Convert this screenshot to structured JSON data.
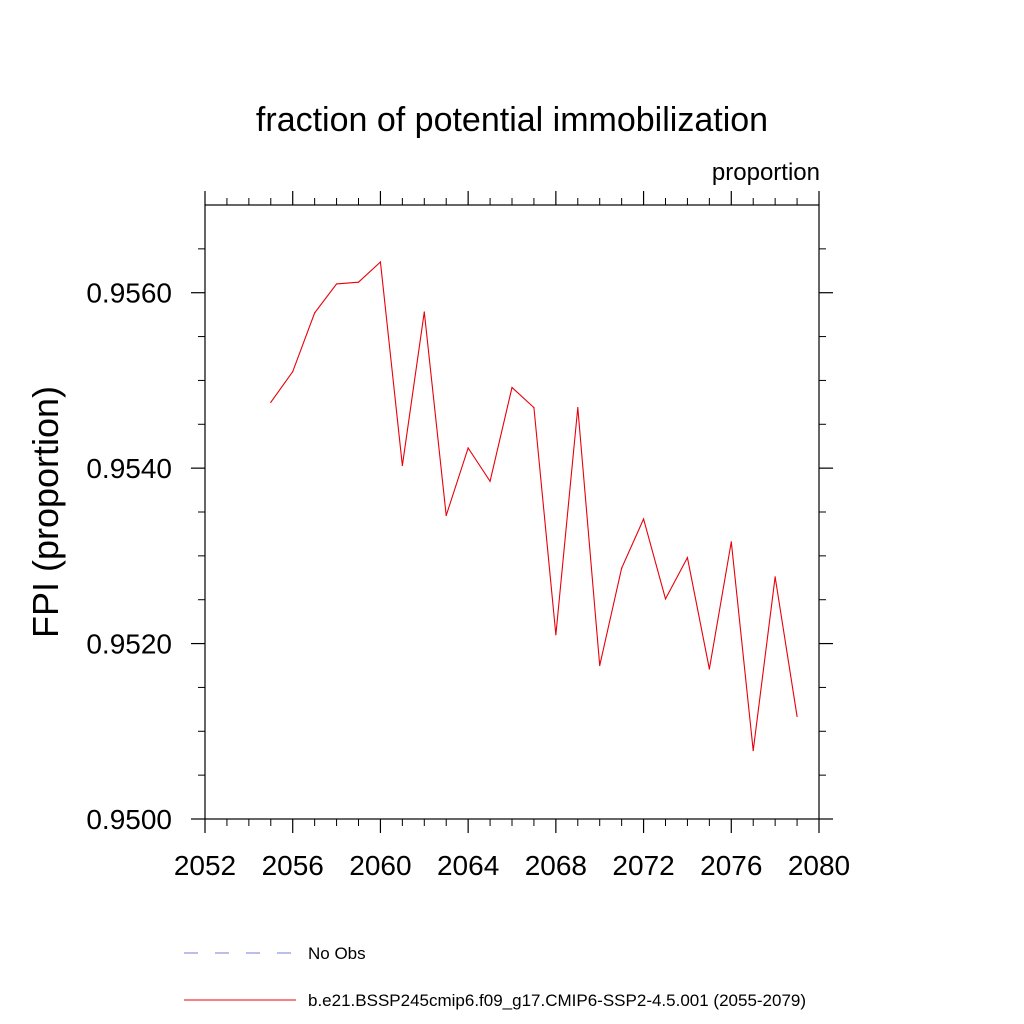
{
  "chart_data": {
    "type": "line",
    "title": "fraction of potential immobilization",
    "units": "proportion",
    "xlabel": "",
    "ylabel": "FPI  (proportion)",
    "xlim": [
      2052,
      2080
    ],
    "ylim": [
      0.95,
      0.957
    ],
    "x_ticks": [
      2052,
      2056,
      2060,
      2064,
      2068,
      2072,
      2076,
      2080
    ],
    "x_tick_labels": [
      "2052",
      "2056",
      "2060",
      "2064",
      "2068",
      "2072",
      "2076",
      "2080"
    ],
    "y_ticks": [
      0.95,
      0.952,
      0.954,
      0.956
    ],
    "y_tick_labels": [
      "0.9500",
      "0.9520",
      "0.9540",
      "0.9560"
    ],
    "grid": false,
    "legend_position": "bottom",
    "legend": [
      {
        "label": "No Obs",
        "style": "dashed",
        "color": "#7b7bd6"
      },
      {
        "label": "b.e21.BSSP245cmip6.f09_g17.CMIP6-SSP2-4.5.001 (2055-2079)",
        "style": "solid",
        "color": "#e8000b"
      }
    ],
    "series": [
      {
        "name": "b.e21.BSSP245cmip6.f09_g17.CMIP6-SSP2-4.5.001 (2055-2079)",
        "color": "#e8000b",
        "x": [
          2055,
          2056,
          2057,
          2058,
          2059,
          2060,
          2061,
          2062,
          2063,
          2064,
          2065,
          2066,
          2067,
          2068,
          2069,
          2070,
          2071,
          2072,
          2073,
          2074,
          2075,
          2076,
          2077,
          2078,
          2079
        ],
        "values": [
          0.95475,
          0.9551,
          0.95577,
          0.9561,
          0.95612,
          0.95635,
          0.95403,
          0.95578,
          0.95346,
          0.95423,
          0.95385,
          0.95492,
          0.95469,
          0.9521,
          0.95469,
          0.95175,
          0.95286,
          0.95342,
          0.95251,
          0.95298,
          0.95171,
          0.95316,
          0.95078,
          0.95276,
          0.95117
        ]
      }
    ]
  }
}
